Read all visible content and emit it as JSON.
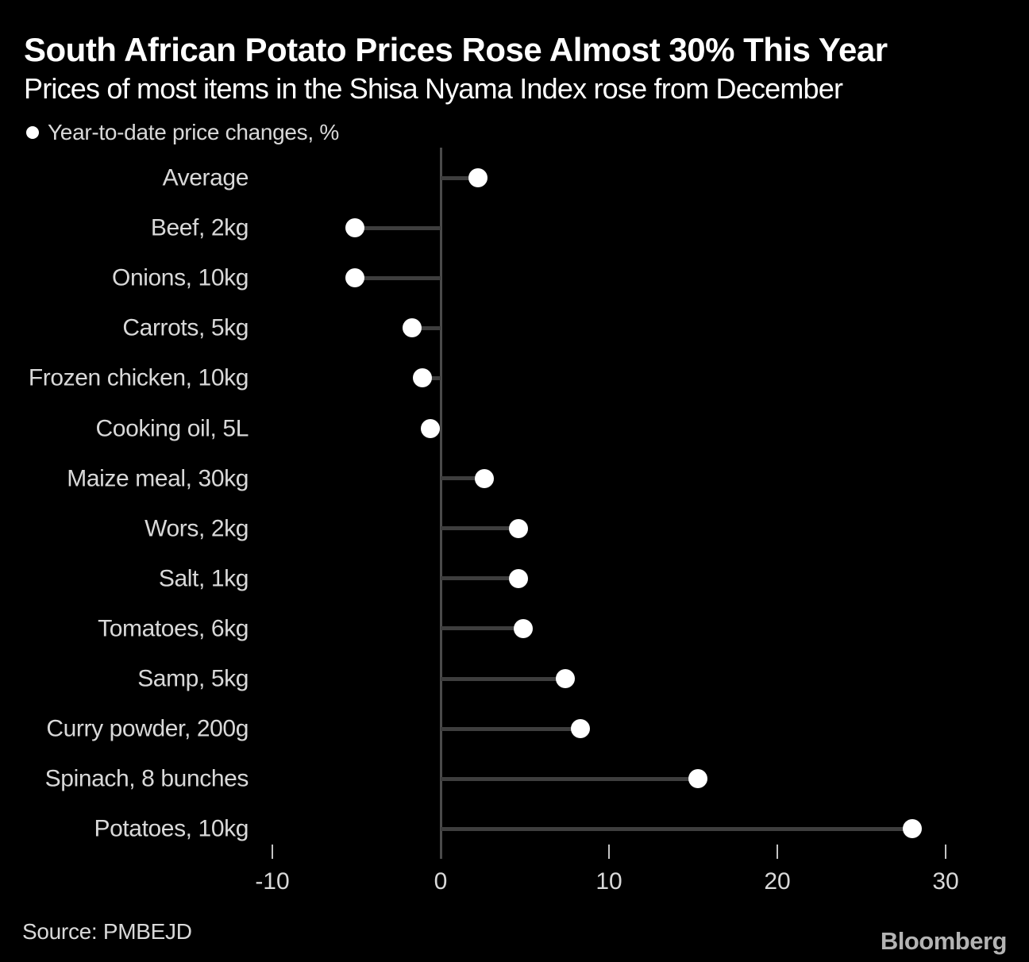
{
  "header": {
    "title": "South African Potato Prices Rose Almost 30% This Year",
    "subtitle": "Prices of most items in the Shisa Nyama Index rose from December"
  },
  "legend": {
    "label": "Year-to-date price changes, %"
  },
  "chart_data": {
    "type": "bar",
    "variant": "lollipop-dot",
    "orientation": "horizontal",
    "title": "South African Potato Prices Rose Almost 30% This Year",
    "series_label": "Year-to-date price changes, %",
    "unit": "%",
    "categories": [
      "Average",
      "Beef, 2kg",
      "Onions, 10kg",
      "Carrots, 5kg",
      "Frozen chicken, 10kg",
      "Cooking oil, 5L",
      "Maize meal, 30kg",
      "Wors, 2kg",
      "Salt, 1kg",
      "Tomatoes, 6kg",
      "Samp, 5kg",
      "Curry powder, 200g",
      "Spinach, 8 bunches",
      "Potatoes, 10kg"
    ],
    "values": [
      2.2,
      -5.1,
      -5.1,
      -1.7,
      -1.1,
      -0.6,
      2.6,
      4.6,
      4.6,
      4.9,
      7.4,
      8.3,
      15.3,
      28.0
    ],
    "xticks": [
      -10,
      0,
      10,
      20,
      30
    ],
    "xlim": [
      -11,
      31.5
    ],
    "grid": false,
    "legend_position": "top-left"
  },
  "footer": {
    "source": "Source: PMBEJD",
    "brand": "Bloomberg"
  },
  "colors": {
    "background": "#000000",
    "title_text": "#ffffff",
    "label_text": "#d9d9d9",
    "dot": "#ffffff",
    "stem": "#3e3e3e",
    "axis": "#4a4a4a",
    "tick_mark": "#c4c4c4",
    "brand_text": "#b3b3b3"
  }
}
